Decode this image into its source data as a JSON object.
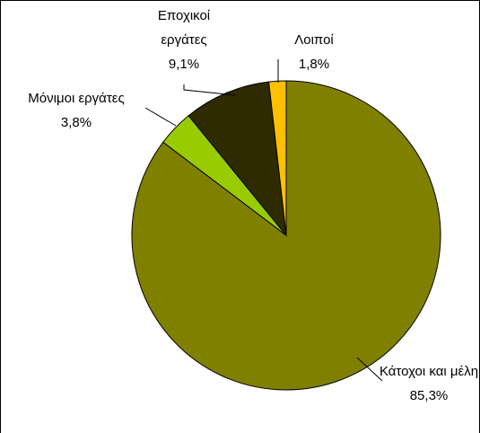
{
  "chart_data": {
    "type": "pie",
    "categories": [
      "Κάτοχοι και μέλη",
      "Μόνιμοι εργάτες",
      "Εποχικοί εργάτες",
      "Λοιποί"
    ],
    "values": [
      85.3,
      3.8,
      9.1,
      1.8
    ],
    "value_labels": [
      "85,3%",
      "3,8%",
      "9,1%",
      "1,8%"
    ],
    "colors": [
      "#808000",
      "#99cc00",
      "#2e2b00",
      "#ffc000"
    ]
  }
}
